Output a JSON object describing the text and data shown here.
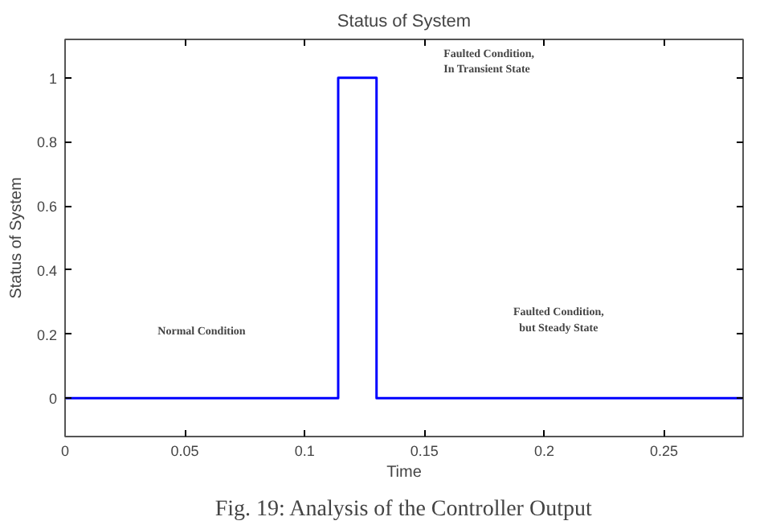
{
  "chart_data": {
    "type": "line",
    "title": "Status of System",
    "xlabel": "Time",
    "ylabel": "Status of System",
    "x": [
      0,
      0.114,
      0.114,
      0.13,
      0.13,
      0.283
    ],
    "series": [
      {
        "color": "#0000ff",
        "values": [
          0,
          0,
          1,
          1,
          0,
          0
        ]
      }
    ],
    "xlim": [
      0,
      0.283
    ],
    "ylim": [
      -0.12,
      1.12
    ],
    "xticks": [
      0,
      0.05,
      0.1,
      0.15,
      0.2,
      0.25
    ],
    "yticks": [
      0,
      0.2,
      0.4,
      0.6,
      0.8,
      1
    ],
    "grid": false,
    "annotations": [
      "Normal Condition",
      "Faulted Condition,\nIn Transient State",
      "Faulted Condition,\nbut Steady State",
      "Fig. 19: Analysis of the Controller Output"
    ]
  }
}
